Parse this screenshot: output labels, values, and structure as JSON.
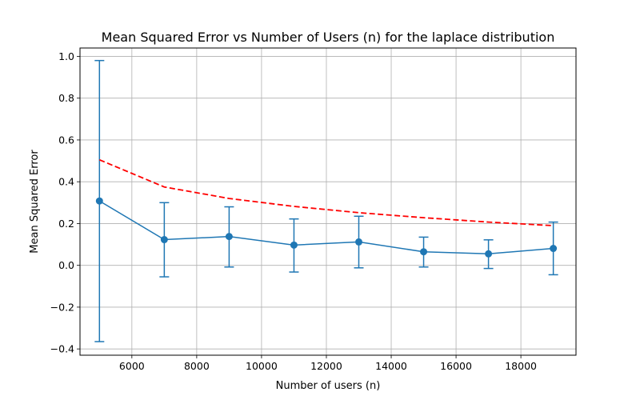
{
  "chart_data": {
    "type": "line",
    "title": "Mean Squared Error vs Number of Users (n) for the laplace distribution",
    "xlabel": "Number of users (n)",
    "ylabel": "Mean Squared Error",
    "xlim": [
      4400,
      19700
    ],
    "ylim": [
      -0.43,
      1.04
    ],
    "xticks": [
      6000,
      8000,
      10000,
      12000,
      14000,
      16000,
      18000
    ],
    "xtick_labels": [
      "6000",
      "8000",
      "10000",
      "12000",
      "14000",
      "16000",
      "18000"
    ],
    "yticks": [
      -0.4,
      -0.2,
      0.0,
      0.2,
      0.4,
      0.6,
      0.8,
      1.0
    ],
    "ytick_labels": [
      "−0.4",
      "−0.2",
      "0.0",
      "0.2",
      "0.4",
      "0.6",
      "0.8",
      "1.0"
    ],
    "grid": true,
    "x": [
      5000,
      7000,
      9000,
      11000,
      13000,
      15000,
      17000,
      19000
    ],
    "series": [
      {
        "style": "solid-markers-errorbars",
        "color": "#1f77b4",
        "values": [
          0.308,
          0.123,
          0.138,
          0.097,
          0.112,
          0.065,
          0.055,
          0.081
        ],
        "err_low": [
          -0.365,
          -0.055,
          -0.008,
          -0.032,
          -0.012,
          -0.008,
          -0.015,
          -0.045
        ],
        "err_high": [
          0.98,
          0.3,
          0.28,
          0.222,
          0.235,
          0.135,
          0.122,
          0.207
        ]
      },
      {
        "style": "dashed",
        "color": "#ff0000",
        "values": [
          0.505,
          0.375,
          0.32,
          0.282,
          0.252,
          0.228,
          0.207,
          0.19
        ]
      }
    ]
  }
}
